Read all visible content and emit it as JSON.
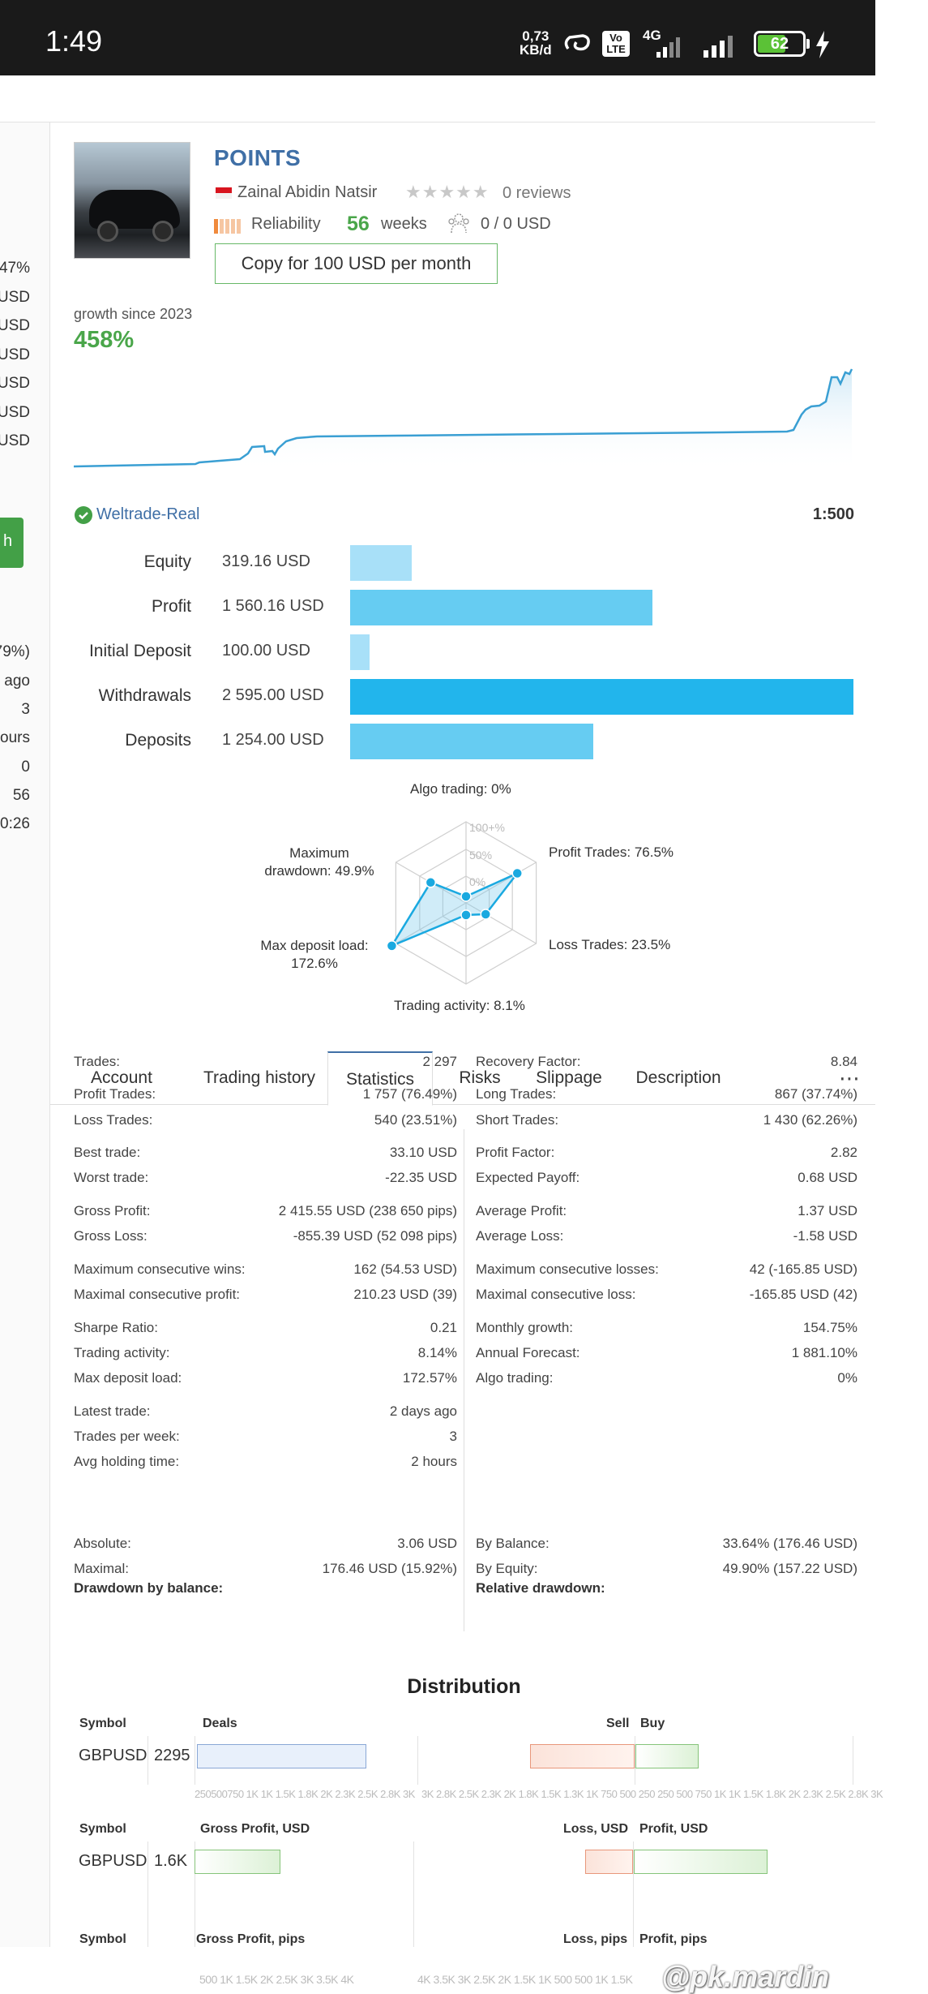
{
  "status_bar": {
    "time": "1:49",
    "speed_value": "0,73",
    "speed_unit": "KB/d",
    "volte": "Vo LTE",
    "network": "4G",
    "battery": "62"
  },
  "left_panel": {
    "values": [
      "47%",
      "USD",
      "USD",
      "USD",
      "USD",
      "USD",
      "USD",
      "79%)",
      "ago",
      "3",
      "ours",
      "0",
      "56",
      "0:26"
    ],
    "button_label": "h"
  },
  "signal": {
    "title": "POINTS",
    "author": "Zainal Abidin Natsir",
    "rating_stars": 0,
    "reviews": "0 reviews",
    "reliability_label": "Reliability",
    "weeks_number": "56",
    "weeks_label": "weeks",
    "subscribers": "0 / 0 USD",
    "copy_button": "Copy for 100 USD per month"
  },
  "growth": {
    "label": "growth since 2023",
    "value": "458%",
    "line_color": "#3a9fd3"
  },
  "account": {
    "broker": "Weltrade-Real",
    "leverage": "1:500"
  },
  "balance_bars": [
    {
      "label": "Equity",
      "value": "319.16 USD",
      "amount": 319.16,
      "color": "#a8e0f8"
    },
    {
      "label": "Profit",
      "value": "1 560.16 USD",
      "amount": 1560.16,
      "color": "#66ccf2"
    },
    {
      "label": "Initial Deposit",
      "value": "100.00 USD",
      "amount": 100.0,
      "color": "#a8e0f8"
    },
    {
      "label": "Withdrawals",
      "value": "2 595.00 USD",
      "amount": 2595.0,
      "color": "#22b5ec"
    },
    {
      "label": "Deposits",
      "value": "1 254.00 USD",
      "amount": 1254.0,
      "color": "#66ccf2"
    }
  ],
  "radar": {
    "ring_labels": [
      "100+%",
      "50%",
      "0%"
    ],
    "axes": [
      {
        "label": "Algo trading: 0%",
        "value": 0
      },
      {
        "label": "Profit Trades: 76.5%",
        "value": 76.5
      },
      {
        "label": "Loss Trades: 23.5%",
        "value": 23.5
      },
      {
        "label": "Trading activity: 8.1%",
        "value": 8.1
      },
      {
        "label": "Max deposit load: 172.6%",
        "label_line1": "Max deposit load:",
        "label_line2": "172.6%",
        "value": 172.6
      },
      {
        "label": "Maximum drawdown: 49.9%",
        "label_line1": "Maximum",
        "label_line2": "drawdown: 49.9%",
        "value": 49.9
      }
    ],
    "color": "#1aa9e0"
  },
  "tabs": [
    "Account",
    "Trading history",
    "Statistics",
    "Risks",
    "Slippage",
    "Description"
  ],
  "tabs_active": "Statistics",
  "tabs_more": "⋯",
  "stats_left": [
    {
      "k": "Trades:",
      "v": "2 297"
    },
    {
      "k": "Profit Trades:",
      "v": "1 757 (76.49%)"
    },
    {
      "k": "Loss Trades:",
      "v": "540 (23.51%)"
    },
    {
      "k": "Best trade:",
      "v": "33.10 USD"
    },
    {
      "k": "Worst trade:",
      "v": "-22.35 USD"
    },
    {
      "k": "Gross Profit:",
      "v": "2 415.55 USD (238 650 pips)"
    },
    {
      "k": "Gross Loss:",
      "v": "-855.39 USD (52 098 pips)"
    },
    {
      "k": "Maximum consecutive wins:",
      "v": "162 (54.53 USD)"
    },
    {
      "k": "Maximal consecutive profit:",
      "v": "210.23 USD (39)"
    },
    {
      "k": "Sharpe Ratio:",
      "v": "0.21"
    },
    {
      "k": "Trading activity:",
      "v": "8.14%"
    },
    {
      "k": "Max deposit load:",
      "v": "172.57%"
    },
    {
      "k": "Latest trade:",
      "v": "2 days ago"
    },
    {
      "k": "Trades per week:",
      "v": "3"
    },
    {
      "k": "Avg holding time:",
      "v": "2 hours"
    }
  ],
  "stats_right": [
    {
      "k": "Recovery Factor:",
      "v": "8.84"
    },
    {
      "k": "Long Trades:",
      "v": "867 (37.74%)"
    },
    {
      "k": "Short Trades:",
      "v": "1 430 (62.26%)"
    },
    {
      "k": "Profit Factor:",
      "v": "2.82"
    },
    {
      "k": "Expected Payoff:",
      "v": "0.68 USD"
    },
    {
      "k": "Average Profit:",
      "v": "1.37 USD"
    },
    {
      "k": "Average Loss:",
      "v": "-1.58 USD"
    },
    {
      "k": "Maximum consecutive losses:",
      "v": "42 (-165.85 USD)"
    },
    {
      "k": "Maximal consecutive loss:",
      "v": "-165.85 USD (42)"
    },
    {
      "k": "Monthly growth:",
      "v": "154.75%"
    },
    {
      "k": "Annual Forecast:",
      "v": "1 881.10%"
    },
    {
      "k": "Algo trading:",
      "v": "0%"
    }
  ],
  "drawdown_balance": {
    "title": "Drawdown by balance:",
    "rows": [
      {
        "k": "Absolute:",
        "v": "3.06 USD"
      },
      {
        "k": "Maximal:",
        "v": "176.46 USD (15.92%)"
      }
    ]
  },
  "drawdown_relative": {
    "title": "Relative drawdown:",
    "rows": [
      {
        "k": "By Balance:",
        "v": "33.64% (176.46 USD)"
      },
      {
        "k": "By Equity:",
        "v": "49.90% (157.22 USD)"
      }
    ]
  },
  "distribution": {
    "title": "Distribution",
    "symbol_header": "Symbol",
    "deals_header": "Deals",
    "sell_header": "Sell",
    "buy_header": "Buy",
    "gross_profit_usd_header": "Gross Profit, USD",
    "loss_usd_header": "Loss, USD",
    "profit_usd_header": "Profit, USD",
    "gross_profit_pips_header": "Gross Profit, pips",
    "loss_pips_header": "Loss, pips",
    "profit_pips_header": "Profit, pips",
    "row1_symbol": "GBPUSD",
    "row1_value": "2295",
    "row2_symbol": "GBPUSD",
    "row2_value": "1.6K",
    "axis1_left": "250500750 1K 1K 1.5K 1.8K 2K 2.3K 2.5K 2.8K 3K",
    "axis1_right": "3K 2.8K 2.5K 2.3K 2K 1.8K 1.5K 1.3K 1K 750 500 250 250 500 750 1K 1K 1.5K 1.8K 2K 2.3K 2.5K 2.8K 3K",
    "axis2_left": "500   1K  1.5K    2K  2.5K    3K  3.5K   4K",
    "axis2_right": "4K  3.5K   3K   2.5K  2K   1.5K  1K   500     500   1K   1.5K"
  },
  "watermark": "@pk.mardin"
}
